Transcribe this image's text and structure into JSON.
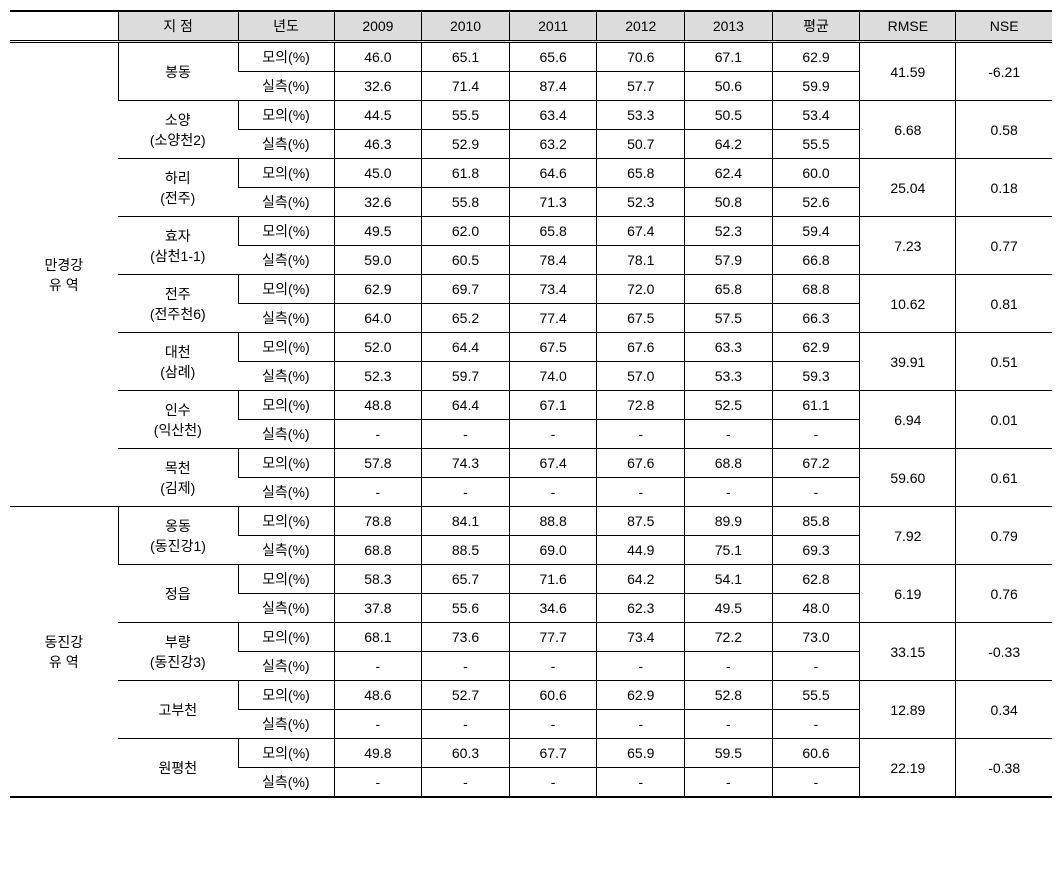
{
  "table": {
    "headers": {
      "blank": "",
      "station": "지 점",
      "year": "년도",
      "y2009": "2009",
      "y2010": "2010",
      "y2011": "2011",
      "y2012": "2012",
      "y2013": "2013",
      "avg": "평균",
      "rmse": "RMSE",
      "nse": "NSE"
    },
    "row_types": {
      "sim": "모의(%)",
      "obs": "실측(%)"
    },
    "regions": [
      {
        "name_line1": "만경강",
        "name_line2": "유   역",
        "stations": [
          {
            "name_line1": "봉동",
            "name_line2": "",
            "sim": [
              "46.0",
              "65.1",
              "65.6",
              "70.6",
              "67.1",
              "62.9"
            ],
            "obs": [
              "32.6",
              "71.4",
              "87.4",
              "57.7",
              "50.6",
              "59.9"
            ],
            "rmse": "41.59",
            "nse": "-6.21"
          },
          {
            "name_line1": "소양",
            "name_line2": "(소양천2)",
            "sim": [
              "44.5",
              "55.5",
              "63.4",
              "53.3",
              "50.5",
              "53.4"
            ],
            "obs": [
              "46.3",
              "52.9",
              "63.2",
              "50.7",
              "64.2",
              "55.5"
            ],
            "rmse": "6.68",
            "nse": "0.58"
          },
          {
            "name_line1": "하리",
            "name_line2": "(전주)",
            "sim": [
              "45.0",
              "61.8",
              "64.6",
              "65.8",
              "62.4",
              "60.0"
            ],
            "obs": [
              "32.6",
              "55.8",
              "71.3",
              "52.3",
              "50.8",
              "52.6"
            ],
            "rmse": "25.04",
            "nse": "0.18"
          },
          {
            "name_line1": "효자",
            "name_line2": "(삼천1-1)",
            "sim": [
              "49.5",
              "62.0",
              "65.8",
              "67.4",
              "52.3",
              "59.4"
            ],
            "obs": [
              "59.0",
              "60.5",
              "78.4",
              "78.1",
              "57.9",
              "66.8"
            ],
            "rmse": "7.23",
            "nse": "0.77"
          },
          {
            "name_line1": "전주",
            "name_line2": "(전주천6)",
            "sim": [
              "62.9",
              "69.7",
              "73.4",
              "72.0",
              "65.8",
              "68.8"
            ],
            "obs": [
              "64.0",
              "65.2",
              "77.4",
              "67.5",
              "57.5",
              "66.3"
            ],
            "rmse": "10.62",
            "nse": "0.81"
          },
          {
            "name_line1": "대천",
            "name_line2": "(삼례)",
            "sim": [
              "52.0",
              "64.4",
              "67.5",
              "67.6",
              "63.3",
              "62.9"
            ],
            "obs": [
              "52.3",
              "59.7",
              "74.0",
              "57.0",
              "53.3",
              "59.3"
            ],
            "rmse": "39.91",
            "nse": "0.51"
          },
          {
            "name_line1": "인수",
            "name_line2": "(익산천)",
            "sim": [
              "48.8",
              "64.4",
              "67.1",
              "72.8",
              "52.5",
              "61.1"
            ],
            "obs": [
              "-",
              "-",
              "-",
              "-",
              "-",
              "-"
            ],
            "rmse": "6.94",
            "nse": "0.01"
          },
          {
            "name_line1": "목천",
            "name_line2": "(김제)",
            "sim": [
              "57.8",
              "74.3",
              "67.4",
              "67.6",
              "68.8",
              "67.2"
            ],
            "obs": [
              "-",
              "-",
              "-",
              "-",
              "-",
              "-"
            ],
            "rmse": "59.60",
            "nse": "0.61"
          }
        ]
      },
      {
        "name_line1": "동진강",
        "name_line2": "유   역",
        "stations": [
          {
            "name_line1": "옹동",
            "name_line2": "(동진강1)",
            "sim": [
              "78.8",
              "84.1",
              "88.8",
              "87.5",
              "89.9",
              "85.8"
            ],
            "obs": [
              "68.8",
              "88.5",
              "69.0",
              "44.9",
              "75.1",
              "69.3"
            ],
            "rmse": "7.92",
            "nse": "0.79"
          },
          {
            "name_line1": "정읍",
            "name_line2": "",
            "sim": [
              "58.3",
              "65.7",
              "71.6",
              "64.2",
              "54.1",
              "62.8"
            ],
            "obs": [
              "37.8",
              "55.6",
              "34.6",
              "62.3",
              "49.5",
              "48.0"
            ],
            "rmse": "6.19",
            "nse": "0.76"
          },
          {
            "name_line1": "부량",
            "name_line2": "(동진강3)",
            "sim": [
              "68.1",
              "73.6",
              "77.7",
              "73.4",
              "72.2",
              "73.0"
            ],
            "obs": [
              "-",
              "-",
              "-",
              "-",
              "-",
              "-"
            ],
            "rmse": "33.15",
            "nse": "-0.33"
          },
          {
            "name_line1": "고부천",
            "name_line2": "",
            "sim": [
              "48.6",
              "52.7",
              "60.6",
              "62.9",
              "52.8",
              "55.5"
            ],
            "obs": [
              "-",
              "-",
              "-",
              "-",
              "-",
              "-"
            ],
            "rmse": "12.89",
            "nse": "0.34"
          },
          {
            "name_line1": "원평천",
            "name_line2": "",
            "sim": [
              "49.8",
              "60.3",
              "67.7",
              "65.9",
              "59.5",
              "60.6"
            ],
            "obs": [
              "-",
              "-",
              "-",
              "-",
              "-",
              "-"
            ],
            "rmse": "22.19",
            "nse": "-0.38"
          }
        ]
      }
    ],
    "colors": {
      "header_bg": "#dcdcdc",
      "border": "#000000",
      "bg": "#ffffff"
    }
  }
}
